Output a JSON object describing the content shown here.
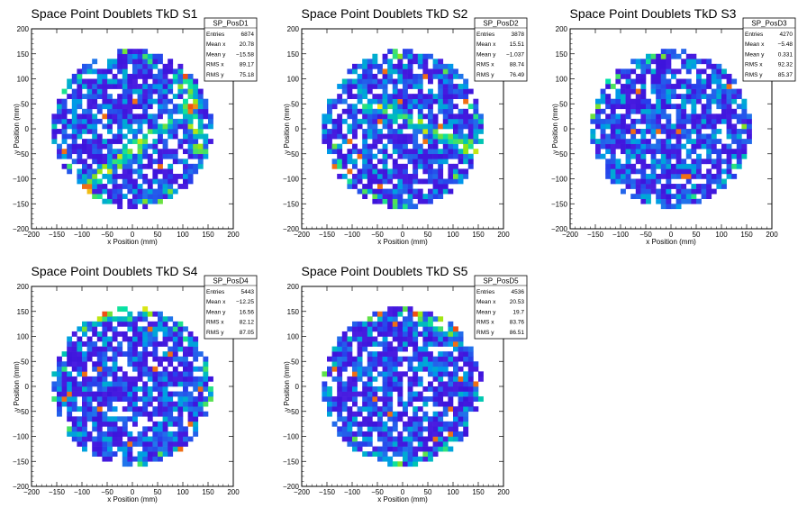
{
  "chart_data": [
    {
      "type": "heatmap",
      "title": "Space Point Doublets TkD S1",
      "xlabel": "x Position (mm)",
      "ylabel": "y Position (mm)",
      "xlim": [
        -200,
        200
      ],
      "ylim": [
        -200,
        200
      ],
      "xticks": [
        -200,
        -150,
        -100,
        -50,
        0,
        50,
        100,
        150,
        200
      ],
      "yticks": [
        -200,
        -150,
        -100,
        -50,
        0,
        50,
        100,
        150,
        200
      ],
      "grid": false,
      "stats": {
        "name": "SP_PosD1",
        "rows": [
          {
            "label": "Entries",
            "value": "6874"
          },
          {
            "label": "Mean x",
            "value": "20.78"
          },
          {
            "label": "Mean y",
            "value": "−15.58"
          },
          {
            "label": "RMS x",
            "value": "89.17"
          },
          {
            "label": "RMS y",
            "value": "75.18"
          }
        ]
      },
      "radius": 160,
      "bin_size": 10,
      "hot_band": [
        {
          "x0": -120,
          "y0": -140,
          "x1": 120,
          "y1": 50
        },
        {
          "x0": 95,
          "y0": 110,
          "x1": 135,
          "y1": -40
        }
      ]
    },
    {
      "type": "heatmap",
      "title": "Space Point Doublets TkD S2",
      "xlabel": "x Position (mm)",
      "ylabel": "y Position (mm)",
      "xlim": [
        -200,
        200
      ],
      "ylim": [
        -200,
        200
      ],
      "xticks": [
        -200,
        -150,
        -100,
        -50,
        0,
        50,
        100,
        150,
        200
      ],
      "yticks": [
        -200,
        -150,
        -100,
        -50,
        0,
        50,
        100,
        150,
        200
      ],
      "grid": false,
      "stats": {
        "name": "SP_PosD2",
        "rows": [
          {
            "label": "Entries",
            "value": "3878"
          },
          {
            "label": "Mean x",
            "value": "15.51"
          },
          {
            "label": "Mean y",
            "value": "−1.037"
          },
          {
            "label": "RMS x",
            "value": "88.74"
          },
          {
            "label": "RMS y",
            "value": "76.49"
          }
        ]
      },
      "radius": 160,
      "bin_size": 10,
      "hot_band": [
        {
          "x0": -80,
          "y0": 60,
          "x1": 140,
          "y1": -40
        }
      ]
    },
    {
      "type": "heatmap",
      "title": "Space Point Doublets TkD S3",
      "xlabel": "x Position (mm)",
      "ylabel": "y Position (mm)",
      "xlim": [
        -200,
        200
      ],
      "ylim": [
        -200,
        200
      ],
      "xticks": [
        -200,
        -150,
        -100,
        -50,
        0,
        50,
        100,
        150,
        200
      ],
      "yticks": [
        -200,
        -150,
        -100,
        -50,
        0,
        50,
        100,
        150,
        200
      ],
      "grid": false,
      "stats": {
        "name": "SP_PosD3",
        "rows": [
          {
            "label": "Entries",
            "value": "4270"
          },
          {
            "label": "Mean x",
            "value": "−5.48"
          },
          {
            "label": "Mean y",
            "value": "0.331"
          },
          {
            "label": "RMS x",
            "value": "92.32"
          },
          {
            "label": "RMS y",
            "value": "85.37"
          }
        ]
      },
      "radius": 160,
      "bin_size": 10,
      "hot_band": []
    },
    {
      "type": "heatmap",
      "title": "Space Point Doublets TkD S4",
      "xlabel": "x Position (mm)",
      "ylabel": "y Position (mm)",
      "xlim": [
        -200,
        200
      ],
      "ylim": [
        -200,
        200
      ],
      "xticks": [
        -200,
        -150,
        -100,
        -50,
        0,
        50,
        100,
        150,
        200
      ],
      "yticks": [
        -200,
        -150,
        -100,
        -50,
        0,
        50,
        100,
        150,
        200
      ],
      "grid": false,
      "stats": {
        "name": "SP_PosD4",
        "rows": [
          {
            "label": "Entries",
            "value": "5443"
          },
          {
            "label": "Mean x",
            "value": "−12.25"
          },
          {
            "label": "Mean y",
            "value": "16.56"
          },
          {
            "label": "RMS x",
            "value": "82.12"
          },
          {
            "label": "RMS y",
            "value": "87.05"
          }
        ]
      },
      "radius": 160,
      "bin_size": 10,
      "hot_band": [
        {
          "x0": -110,
          "y0": 130,
          "x1": 20,
          "y1": 150
        }
      ]
    },
    {
      "type": "heatmap",
      "title": "Space Point Doublets TkD S5",
      "xlabel": "x Position (mm)",
      "ylabel": "y Position (mm)",
      "xlim": [
        -200,
        200
      ],
      "ylim": [
        -200,
        200
      ],
      "xticks": [
        -200,
        -150,
        -100,
        -50,
        0,
        50,
        100,
        150,
        200
      ],
      "yticks": [
        -200,
        -150,
        -100,
        -50,
        0,
        50,
        100,
        150,
        200
      ],
      "grid": false,
      "stats": {
        "name": "SP_PosD5",
        "rows": [
          {
            "label": "Entries",
            "value": "4536"
          },
          {
            "label": "Mean x",
            "value": "20.53"
          },
          {
            "label": "Mean y",
            "value": "19.7"
          },
          {
            "label": "RMS x",
            "value": "83.76"
          },
          {
            "label": "RMS y",
            "value": "86.51"
          }
        ]
      },
      "radius": 160,
      "bin_size": 10,
      "hot_band": [
        {
          "x0": 20,
          "y0": 140,
          "x1": 110,
          "y1": 110
        }
      ]
    }
  ]
}
